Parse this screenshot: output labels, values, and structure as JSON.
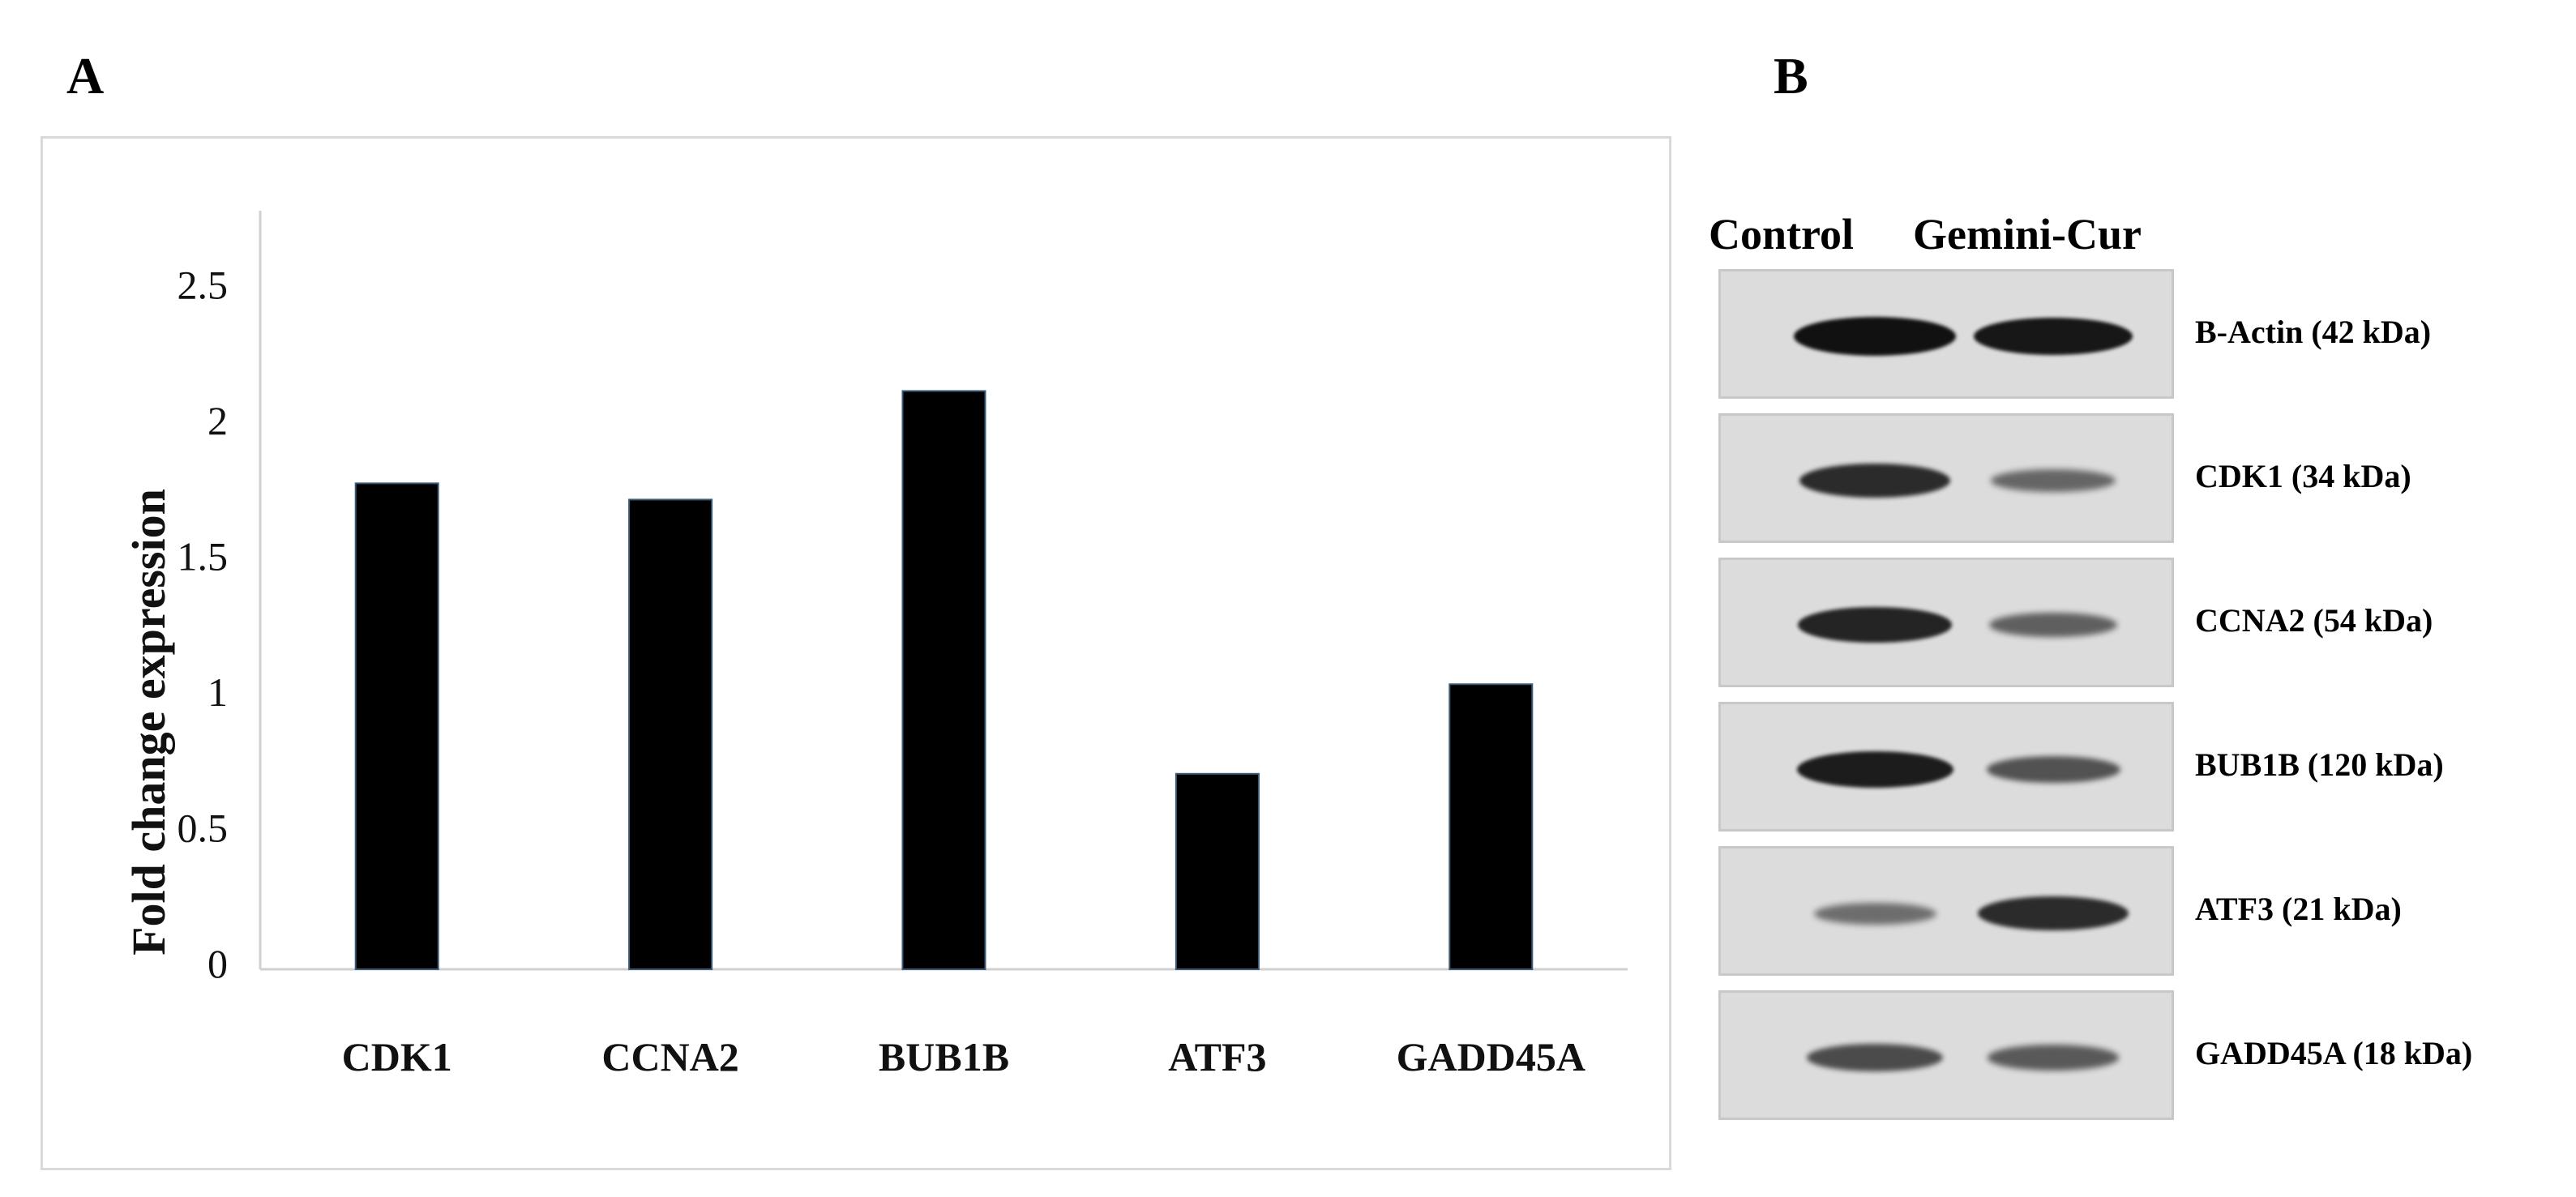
{
  "panels": {
    "a": "A",
    "b": "B"
  },
  "chart_data": {
    "type": "bar",
    "title": "",
    "xlabel": "",
    "ylabel": "Fold change expression",
    "categories": [
      "CDK1",
      "CCNA2",
      "BUB1B",
      "ATF3",
      "GADD45A"
    ],
    "values": [
      1.79,
      1.73,
      2.13,
      0.72,
      1.05
    ],
    "ylim": [
      0,
      2.8
    ],
    "yticks": [
      0,
      0.5,
      1,
      1.5,
      2,
      2.5
    ],
    "ytick_labels": [
      "0",
      "0.5",
      "1",
      "1.5",
      "2",
      "2.5"
    ],
    "bar_color": "#000000",
    "grid": false,
    "legend": "none"
  },
  "blot": {
    "columns": [
      "Control",
      "Gemini-Cur"
    ],
    "rows": [
      {
        "label": "B-Actin (42 kDa)",
        "intensity": [
          1.0,
          0.95
        ]
      },
      {
        "label": "CDK1 (34 kDa)",
        "intensity": [
          0.8,
          0.35
        ]
      },
      {
        "label": "CCNA2 (54 kDa)",
        "intensity": [
          0.85,
          0.4
        ]
      },
      {
        "label": "BUB1B (120 kDa)",
        "intensity": [
          0.9,
          0.5
        ]
      },
      {
        "label": "ATF3 (21 kDa)",
        "intensity": [
          0.3,
          0.8
        ]
      },
      {
        "label": "GADD45A (18 kDa)",
        "intensity": [
          0.55,
          0.45
        ]
      }
    ]
  }
}
